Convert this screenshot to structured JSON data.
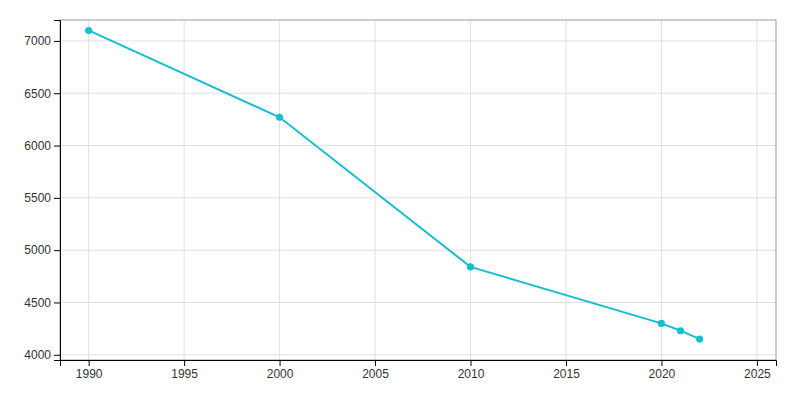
{
  "chart_data": {
    "type": "line",
    "x": [
      1990,
      2000,
      2010,
      2020,
      2021,
      2022
    ],
    "values": [
      7100,
      6270,
      4840,
      4300,
      4230,
      4150
    ],
    "color": "#17BECF",
    "marker": "circle",
    "xlim": [
      1988.5,
      2026
    ],
    "ylim": [
      3950,
      7200
    ],
    "xticks": [
      1990,
      1995,
      2000,
      2005,
      2010,
      2015,
      2020,
      2025
    ],
    "yticks": [
      4000,
      4500,
      5000,
      5500,
      6000,
      6500,
      7000
    ],
    "grid": true
  }
}
